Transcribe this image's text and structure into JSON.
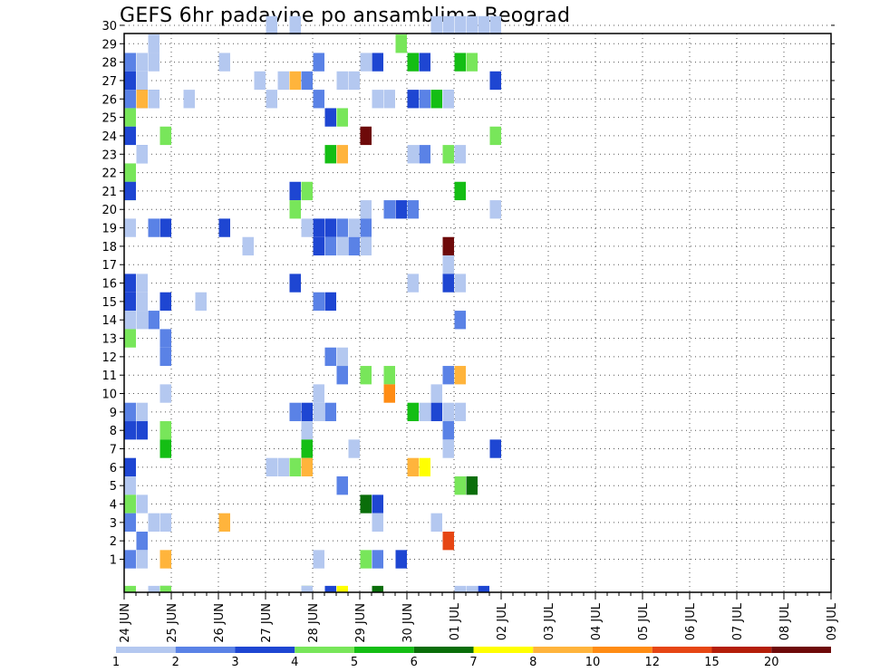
{
  "chart_data": {
    "type": "heatmap",
    "title": "GEFS 6hr padavine po ansamblima Beograd",
    "y_ticks": [
      "1",
      "2",
      "3",
      "4",
      "5",
      "6",
      "7",
      "8",
      "9",
      "10",
      "11",
      "12",
      "13",
      "14",
      "15",
      "16",
      "17",
      "18",
      "19",
      "20",
      "21",
      "22",
      "23",
      "24",
      "25",
      "26",
      "27",
      "28",
      "29",
      "30"
    ],
    "x_ticks": [
      "24 JUN",
      "25 JUN",
      "26 JUN",
      "27 JUN",
      "28 JUN",
      "29 JUN",
      "30 JUN",
      "01 JUL",
      "02 JUL",
      "03 JUL",
      "04 JUL",
      "05 JUL",
      "06 JUL",
      "07 JUL",
      "08 JUL",
      "09 JUL"
    ],
    "x_steps_per_day": 4,
    "grid": true,
    "colorbar": {
      "labels": [
        "1",
        "2",
        "3",
        "4",
        "5",
        "6",
        "7",
        "8",
        "10",
        "12",
        "15",
        "20"
      ],
      "colors": [
        "#b4c8f0",
        "#5a82e6",
        "#1e46d2",
        "#78e65a",
        "#14be14",
        "#0a6e0a",
        "#ffff00",
        "#ffb43c",
        "#ff8c14",
        "#e64614",
        "#b41e0a",
        "#6e0a0a"
      ]
    },
    "cells": [
      [
        30,
        12,
        0
      ],
      [
        30,
        14,
        0
      ],
      [
        30,
        26,
        0
      ],
      [
        30,
        27,
        0
      ],
      [
        30,
        28,
        0
      ],
      [
        30,
        29,
        0
      ],
      [
        30,
        30,
        0
      ],
      [
        30,
        31,
        0
      ],
      [
        29,
        2,
        0
      ],
      [
        29,
        23,
        3
      ],
      [
        28,
        0,
        1
      ],
      [
        28,
        1,
        0
      ],
      [
        28,
        2,
        0
      ],
      [
        28,
        8,
        0
      ],
      [
        28,
        16,
        1
      ],
      [
        28,
        20,
        0
      ],
      [
        28,
        21,
        2
      ],
      [
        28,
        24,
        4
      ],
      [
        28,
        25,
        2
      ],
      [
        28,
        28,
        4
      ],
      [
        28,
        29,
        3
      ],
      [
        27,
        0,
        2
      ],
      [
        27,
        1,
        0
      ],
      [
        27,
        11,
        0
      ],
      [
        27,
        13,
        0
      ],
      [
        27,
        14,
        7
      ],
      [
        27,
        15,
        1
      ],
      [
        27,
        18,
        0
      ],
      [
        27,
        19,
        0
      ],
      [
        27,
        31,
        2
      ],
      [
        26,
        0,
        1
      ],
      [
        26,
        1,
        2
      ],
      [
        26,
        1,
        7
      ],
      [
        26,
        2,
        1
      ],
      [
        26,
        2,
        0
      ],
      [
        26,
        5,
        0
      ],
      [
        26,
        12,
        0
      ],
      [
        26,
        16,
        1
      ],
      [
        26,
        21,
        0
      ],
      [
        26,
        22,
        0
      ],
      [
        26,
        24,
        2
      ],
      [
        26,
        25,
        1
      ],
      [
        26,
        26,
        0
      ],
      [
        26,
        26,
        4
      ],
      [
        26,
        27,
        1
      ],
      [
        26,
        27,
        0
      ],
      [
        25,
        0,
        3
      ],
      [
        25,
        17,
        2
      ],
      [
        25,
        18,
        3
      ],
      [
        24,
        0,
        2
      ],
      [
        24,
        3,
        3
      ],
      [
        24,
        20,
        11
      ],
      [
        24,
        31,
        3
      ],
      [
        23,
        1,
        1
      ],
      [
        23,
        1,
        0
      ],
      [
        23,
        17,
        4
      ],
      [
        23,
        18,
        7
      ],
      [
        23,
        24,
        0
      ],
      [
        23,
        25,
        1
      ],
      [
        23,
        27,
        3
      ],
      [
        23,
        28,
        0
      ],
      [
        22,
        0,
        3
      ],
      [
        21,
        0,
        3
      ],
      [
        21,
        0,
        2
      ],
      [
        21,
        14,
        2
      ],
      [
        21,
        15,
        3
      ],
      [
        21,
        28,
        4
      ],
      [
        20,
        14,
        3
      ],
      [
        20,
        20,
        0
      ],
      [
        20,
        22,
        1
      ],
      [
        20,
        23,
        2
      ],
      [
        20,
        24,
        1
      ],
      [
        20,
        31,
        0
      ],
      [
        19,
        0,
        0
      ],
      [
        19,
        2,
        1
      ],
      [
        19,
        3,
        2
      ],
      [
        19,
        8,
        2
      ],
      [
        19,
        15,
        0
      ],
      [
        19,
        16,
        2
      ],
      [
        19,
        17,
        0
      ],
      [
        19,
        17,
        2
      ],
      [
        19,
        18,
        1
      ],
      [
        19,
        19,
        0
      ],
      [
        19,
        20,
        1
      ],
      [
        18,
        10,
        0
      ],
      [
        18,
        16,
        2
      ],
      [
        18,
        17,
        1
      ],
      [
        18,
        18,
        0
      ],
      [
        18,
        19,
        1
      ],
      [
        18,
        20,
        0
      ],
      [
        18,
        27,
        11
      ],
      [
        17,
        27,
        0
      ],
      [
        16,
        0,
        2
      ],
      [
        16,
        1,
        0
      ],
      [
        16,
        14,
        2
      ],
      [
        16,
        24,
        0
      ],
      [
        16,
        27,
        2
      ],
      [
        16,
        28,
        0
      ],
      [
        15,
        0,
        2
      ],
      [
        15,
        1,
        0
      ],
      [
        15,
        3,
        2
      ],
      [
        15,
        6,
        0
      ],
      [
        15,
        16,
        1
      ],
      [
        15,
        17,
        2
      ],
      [
        14,
        0,
        0
      ],
      [
        14,
        1,
        0
      ],
      [
        14,
        2,
        1
      ],
      [
        14,
        28,
        1
      ],
      [
        13,
        0,
        3
      ],
      [
        13,
        3,
        1
      ],
      [
        12,
        3,
        1
      ],
      [
        12,
        17,
        1
      ],
      [
        12,
        18,
        0
      ],
      [
        11,
        18,
        1
      ],
      [
        11,
        20,
        3
      ],
      [
        11,
        22,
        3
      ],
      [
        11,
        27,
        1
      ],
      [
        11,
        28,
        7
      ],
      [
        10,
        3,
        0
      ],
      [
        10,
        16,
        0
      ],
      [
        10,
        22,
        8
      ],
      [
        10,
        26,
        0
      ],
      [
        9,
        0,
        1
      ],
      [
        9,
        1,
        0
      ],
      [
        9,
        14,
        1
      ],
      [
        9,
        15,
        2
      ],
      [
        9,
        16,
        0
      ],
      [
        9,
        17,
        1
      ],
      [
        9,
        24,
        4
      ],
      [
        9,
        25,
        0
      ],
      [
        9,
        26,
        2
      ],
      [
        9,
        27,
        0
      ],
      [
        9,
        28,
        0
      ],
      [
        8,
        0,
        2
      ],
      [
        8,
        1,
        2
      ],
      [
        8,
        3,
        3
      ],
      [
        8,
        15,
        0
      ],
      [
        8,
        27,
        1
      ],
      [
        7,
        3,
        4
      ],
      [
        7,
        15,
        4
      ],
      [
        7,
        19,
        0
      ],
      [
        7,
        27,
        0
      ],
      [
        7,
        31,
        2
      ],
      [
        6,
        0,
        2
      ],
      [
        6,
        12,
        0
      ],
      [
        6,
        13,
        0
      ],
      [
        6,
        14,
        3
      ],
      [
        6,
        15,
        7
      ],
      [
        6,
        24,
        7
      ],
      [
        6,
        25,
        6
      ],
      [
        5,
        0,
        0
      ],
      [
        5,
        18,
        1
      ],
      [
        5,
        28,
        3
      ],
      [
        5,
        29,
        5
      ],
      [
        4,
        0,
        3
      ],
      [
        4,
        1,
        0
      ],
      [
        4,
        20,
        5
      ],
      [
        4,
        21,
        2
      ],
      [
        3,
        0,
        1
      ],
      [
        3,
        2,
        0
      ],
      [
        3,
        3,
        0
      ],
      [
        3,
        8,
        7
      ],
      [
        3,
        21,
        0
      ],
      [
        3,
        26,
        0
      ],
      [
        2,
        1,
        1
      ],
      [
        2,
        27,
        9
      ],
      [
        1,
        0,
        1
      ],
      [
        1,
        1,
        0
      ],
      [
        1,
        3,
        7
      ],
      [
        1,
        16,
        0
      ],
      [
        1,
        20,
        3
      ],
      [
        1,
        21,
        1
      ],
      [
        1,
        23,
        2
      ],
      [
        0,
        0,
        3
      ],
      [
        0,
        2,
        0
      ],
      [
        0,
        3,
        5
      ],
      [
        0,
        3,
        3
      ],
      [
        0,
        15,
        5
      ],
      [
        0,
        15,
        0
      ],
      [
        0,
        17,
        2
      ],
      [
        0,
        18,
        6
      ],
      [
        0,
        21,
        5
      ],
      [
        0,
        28,
        0
      ],
      [
        0,
        29,
        0
      ],
      [
        0,
        30,
        2
      ]
    ]
  }
}
